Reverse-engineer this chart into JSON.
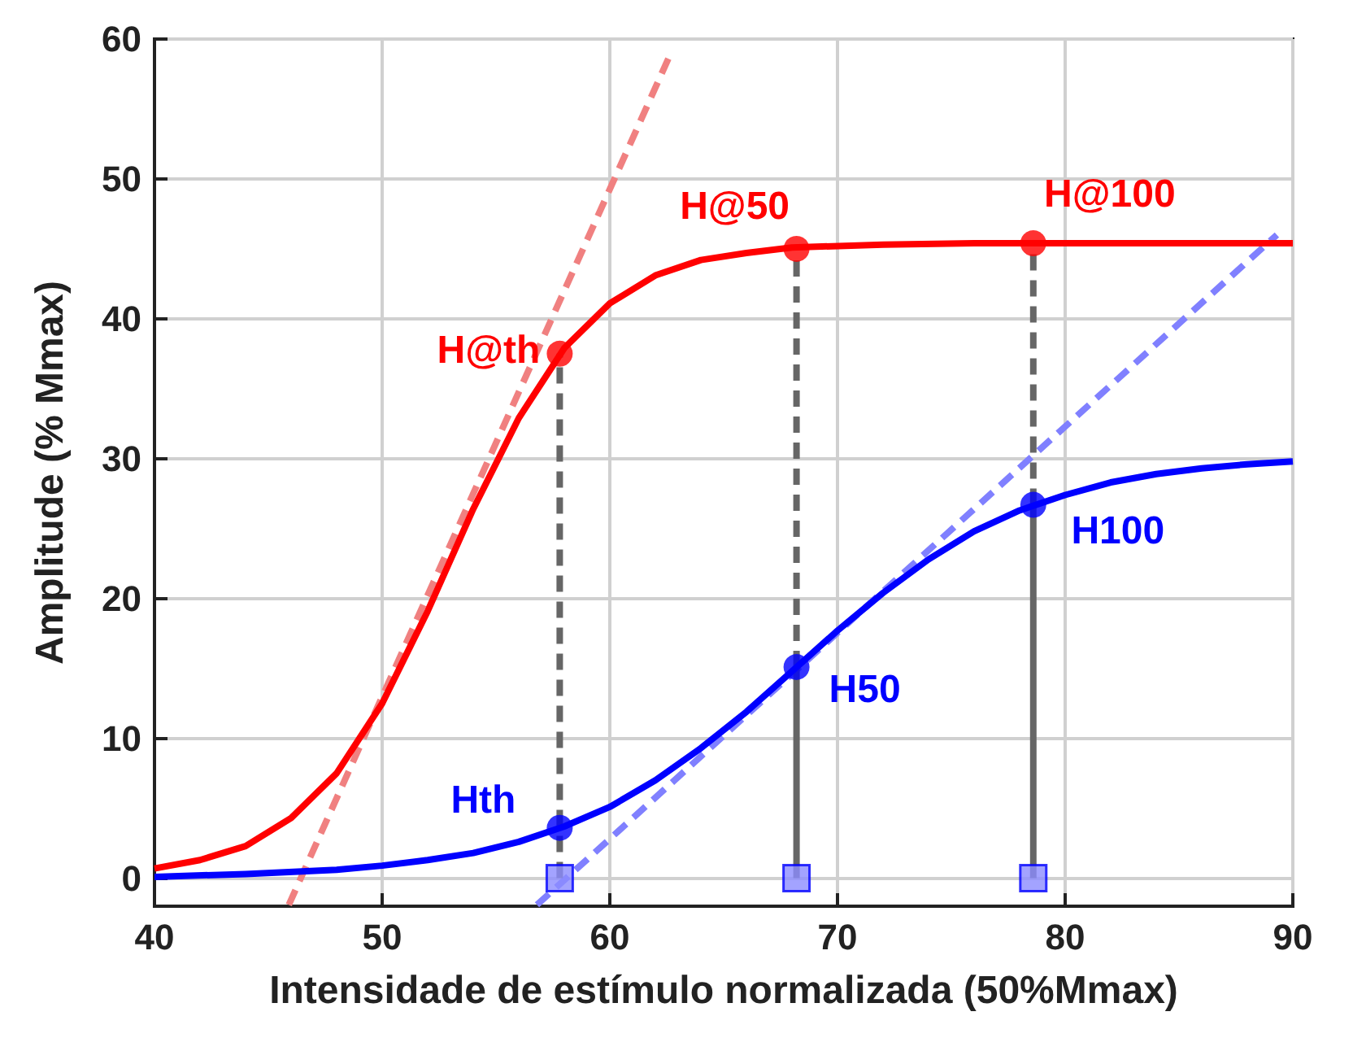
{
  "chart_data": {
    "type": "line",
    "xlabel": "Intensidade de estímulo normalizada (50%Mmax)",
    "ylabel": "Amplitude (% Mmax)",
    "xlim": [
      40,
      90
    ],
    "xticks": [
      40,
      50,
      60,
      70,
      80,
      90
    ],
    "ylim": [
      -2,
      60
    ],
    "yticks": [
      0,
      10,
      20,
      30,
      40,
      50,
      60
    ],
    "grid": true,
    "series": [
      {
        "type": "line",
        "color": "#f08080",
        "line_style": "dashed",
        "marker": "none",
        "x": [
          45.9,
          62.6
        ],
        "values": [
          -1.9,
          58.7
        ]
      },
      {
        "type": "line",
        "color": "#8080ff",
        "line_style": "dashed",
        "marker": "none",
        "x": [
          56.8,
          89.3
        ],
        "values": [
          -1.9,
          46.0
        ]
      },
      {
        "type": "line",
        "color": "#666666",
        "line_style": "dashed",
        "marker": "none",
        "x": [
          57.8,
          57.8
        ],
        "values": [
          0,
          37.5
        ]
      },
      {
        "type": "line",
        "color": "#666666",
        "line_style": "solid",
        "marker": "none",
        "x": [
          68.2,
          68.2
        ],
        "values": [
          0,
          15.1
        ]
      },
      {
        "type": "line",
        "color": "#666666",
        "line_style": "dashed",
        "marker": "none",
        "x": [
          68.2,
          68.2
        ],
        "values": [
          15.1,
          45.0
        ]
      },
      {
        "type": "line",
        "color": "#666666",
        "line_style": "solid",
        "marker": "none",
        "x": [
          78.6,
          78.6
        ],
        "values": [
          0,
          26.7
        ]
      },
      {
        "type": "line",
        "color": "#666666",
        "line_style": "dashed",
        "marker": "none",
        "x": [
          78.6,
          78.6
        ],
        "values": [
          26.7,
          45.4
        ]
      },
      {
        "type": "line",
        "color": "#ff0000",
        "line_style": "solid",
        "marker": "none",
        "x": [
          40,
          42,
          44,
          46,
          48,
          50,
          52,
          54,
          56,
          58,
          60,
          62,
          64,
          66,
          68,
          72,
          76,
          80,
          85,
          90
        ],
        "values": [
          0.7,
          1.3,
          2.3,
          4.3,
          7.5,
          12.5,
          19.1,
          26.4,
          32.9,
          37.9,
          41.1,
          43.1,
          44.2,
          44.7,
          45.1,
          45.3,
          45.4,
          45.4,
          45.4,
          45.4
        ]
      },
      {
        "type": "line",
        "color": "#0000ff",
        "line_style": "solid",
        "marker": "none",
        "x": [
          40,
          44,
          48,
          50,
          52,
          54,
          56,
          58,
          60,
          62,
          64,
          66,
          68,
          70,
          72,
          74,
          76,
          78,
          80,
          82,
          84,
          86,
          88,
          90
        ],
        "values": [
          0.1,
          0.3,
          0.6,
          0.9,
          1.3,
          1.8,
          2.6,
          3.7,
          5.1,
          7.0,
          9.3,
          11.9,
          14.8,
          17.7,
          20.4,
          22.8,
          24.8,
          26.3,
          27.4,
          28.3,
          28.9,
          29.3,
          29.6,
          29.8
        ]
      },
      {
        "type": "scatter",
        "color": "#8c8cff",
        "marker": "square",
        "x": [
          57.8,
          68.2,
          78.6
        ],
        "values": [
          0,
          0,
          0
        ]
      },
      {
        "type": "scatter",
        "color": "#ff0000",
        "marker": "circle",
        "x": [
          57.8,
          68.2,
          78.6
        ],
        "values": [
          37.5,
          45.0,
          45.4
        ]
      },
      {
        "type": "scatter",
        "color": "#0000ff",
        "marker": "circle",
        "x": [
          57.8,
          68.2,
          78.6
        ],
        "values": [
          3.6,
          15.1,
          26.7
        ]
      }
    ],
    "annotations": [
      {
        "text": "H@th",
        "x": 57.8,
        "y": 37.5
      },
      {
        "text": "H@50",
        "x": 68.2,
        "y": 45.0
      },
      {
        "text": "H@100",
        "x": 78.6,
        "y": 45.4
      },
      {
        "text": "Hth",
        "x": 57.8,
        "y": 3.6
      },
      {
        "text": "H50",
        "x": 68.2,
        "y": 15.1
      },
      {
        "text": "H100",
        "x": 78.6,
        "y": 26.7
      }
    ]
  }
}
